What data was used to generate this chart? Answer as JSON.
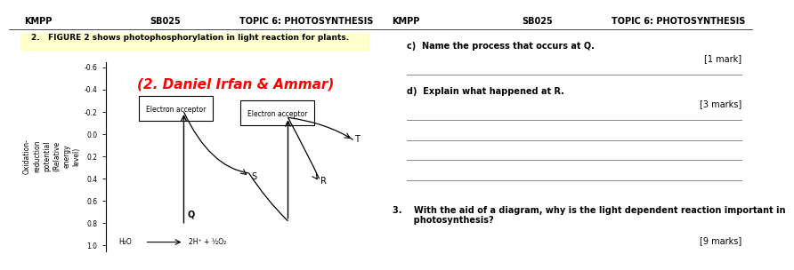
{
  "header_left": "KMPP",
  "header_center": "SB025",
  "header_right": "TOPIC 6: PHOTOSYNTHESIS",
  "question_text": "2.   FIGURE 2 shows photophosphorylation in light reaction for plants.",
  "watermark": "(2. Daniel Irfan & Ammar)",
  "ylabel": "Oxidation-\nreduction\npotential\n(Relative\nenergy\nlevel)",
  "yticks": [
    -0.6,
    -0.4,
    -0.2,
    0.0,
    0.2,
    0.4,
    0.6,
    0.8,
    1.0
  ],
  "h2o_label": "H₂O",
  "h2o_products": "2H⁺ + ½O₂",
  "box1_label": "Electron acceptor",
  "box2_label": "Electron acceptor",
  "point_labels": [
    "Q",
    "S",
    "R",
    "T"
  ],
  "bg_highlight": "#ffffcc",
  "right_header_left": "KMPP",
  "right_header_center": "SB025",
  "right_header_right": "TOPIC 6: PHOTOSYNTHESIS",
  "qc_label": "c)  Name the process that occurs at Q.",
  "qc_mark": "[1 mark]",
  "qd_label": "d)  Explain what happened at R.",
  "qd_mark": "[3 marks]",
  "q3_label": "3.    With the aid of a diagram, why is the light dependent reaction important in\n       photosynthesis?",
  "q3_mark": "[9 marks]",
  "line_color": "#888888"
}
